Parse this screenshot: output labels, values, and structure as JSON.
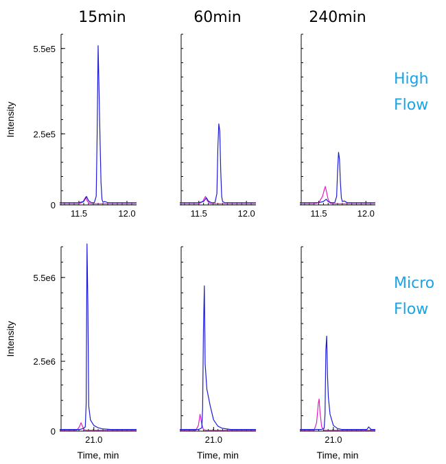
{
  "column_titles": [
    "15min",
    "60min",
    "240min"
  ],
  "row_labels": [
    {
      "line1": "High",
      "line2": "Flow",
      "color": "#1aa3e6"
    },
    {
      "line1": "Micro",
      "line2": "Flow",
      "color": "#1aa3e6"
    }
  ],
  "colors": {
    "series_a": "#1a1ad6",
    "series_b": "#e61ac8"
  },
  "chart_data": [
    {
      "type": "line",
      "row": 0,
      "col": 0,
      "xlabel": "",
      "ylabel": "Intensity",
      "xlim": [
        11.3,
        12.1
      ],
      "ylim": [
        0,
        600000
      ],
      "xticks": [
        {
          "value": 11.5,
          "label": "11.5"
        },
        {
          "value": 12.0,
          "label": "12.0"
        }
      ],
      "yticks": [
        {
          "value": 0,
          "label": "0"
        },
        {
          "value": 250000,
          "label": "2.5e5"
        },
        {
          "value": 550000,
          "label": "5.5e5"
        }
      ],
      "series": [
        {
          "x": [
            11.3,
            11.5,
            11.55,
            11.58,
            11.6,
            11.63,
            11.66,
            11.68,
            11.69,
            11.7,
            11.71,
            11.72,
            11.73,
            11.74,
            11.75,
            11.77,
            11.8,
            12.1
          ],
          "y": [
            8000,
            8000,
            12000,
            30000,
            15000,
            8000,
            8000,
            30000,
            250000,
            560000,
            400000,
            230000,
            80000,
            20000,
            10000,
            12000,
            8000,
            8000
          ]
        },
        {
          "x": [
            11.3,
            11.5,
            11.54,
            11.57,
            11.59,
            11.62,
            11.65,
            12.1
          ],
          "y": [
            4000,
            4000,
            10000,
            28000,
            12000,
            4000,
            4000,
            4000
          ]
        }
      ]
    },
    {
      "type": "line",
      "row": 0,
      "col": 1,
      "xlabel": "",
      "ylabel": "",
      "xlim": [
        11.3,
        12.1
      ],
      "ylim": [
        0,
        600000
      ],
      "xticks": [
        {
          "value": 11.5,
          "label": "11.5"
        },
        {
          "value": 12.0,
          "label": "12.0"
        }
      ],
      "yticks": [],
      "series": [
        {
          "x": [
            11.3,
            11.5,
            11.55,
            11.58,
            11.6,
            11.63,
            11.67,
            11.69,
            11.7,
            11.71,
            11.72,
            11.73,
            11.74,
            11.75,
            11.77,
            12.1
          ],
          "y": [
            8000,
            8000,
            12000,
            25000,
            14000,
            8000,
            8000,
            40000,
            200000,
            285000,
            260000,
            120000,
            30000,
            12000,
            8000,
            8000
          ]
        },
        {
          "x": [
            11.3,
            11.5,
            11.54,
            11.57,
            11.59,
            11.62,
            11.65,
            12.1
          ],
          "y": [
            4000,
            4000,
            12000,
            30000,
            14000,
            4000,
            4000,
            4000
          ]
        }
      ]
    },
    {
      "type": "line",
      "row": 0,
      "col": 2,
      "xlabel": "",
      "ylabel": "",
      "xlim": [
        11.3,
        12.1
      ],
      "ylim": [
        0,
        600000
      ],
      "xticks": [
        {
          "value": 11.5,
          "label": "11.5"
        },
        {
          "value": 12.0,
          "label": "12.0"
        }
      ],
      "yticks": [],
      "series": [
        {
          "x": [
            11.3,
            11.5,
            11.55,
            11.58,
            11.6,
            11.63,
            11.67,
            11.69,
            11.7,
            11.71,
            11.72,
            11.73,
            11.74,
            11.75,
            11.77,
            11.8,
            12.1
          ],
          "y": [
            8000,
            8000,
            12000,
            20000,
            12000,
            8000,
            8000,
            30000,
            120000,
            185000,
            160000,
            80000,
            25000,
            12000,
            14000,
            8000,
            8000
          ]
        },
        {
          "x": [
            11.3,
            11.45,
            11.5,
            11.54,
            11.56,
            11.57,
            11.58,
            11.6,
            11.62,
            11.65,
            12.1
          ],
          "y": [
            4000,
            4000,
            8000,
            30000,
            55000,
            65000,
            50000,
            20000,
            6000,
            4000,
            4000
          ]
        }
      ]
    },
    {
      "type": "line",
      "row": 1,
      "col": 0,
      "xlabel": "Time, min",
      "ylabel": "Intensity",
      "xlim": [
        20.6,
        21.5
      ],
      "ylim": [
        0,
        6600000
      ],
      "xticks": [
        {
          "value": 21.0,
          "label": "21.0"
        }
      ],
      "yticks": [
        {
          "value": 0,
          "label": "0"
        },
        {
          "value": 2500000,
          "label": "2.5e6"
        },
        {
          "value": 5500000,
          "label": "5.5e6"
        }
      ],
      "series": [
        {
          "x": [
            20.6,
            20.84,
            20.86,
            20.88,
            20.9,
            20.91,
            20.92,
            20.93,
            20.94,
            20.96,
            21.0,
            21.05,
            21.1,
            21.2,
            21.5
          ],
          "y": [
            60000,
            60000,
            80000,
            100000,
            150000,
            1000000,
            6700000,
            4500000,
            900000,
            400000,
            200000,
            120000,
            80000,
            60000,
            60000
          ]
        },
        {
          "x": [
            20.6,
            20.8,
            20.83,
            20.85,
            20.87,
            20.89,
            20.92,
            21.5
          ],
          "y": [
            30000,
            30000,
            150000,
            300000,
            150000,
            40000,
            30000,
            30000
          ]
        }
      ]
    },
    {
      "type": "line",
      "row": 1,
      "col": 1,
      "xlabel": "Time, min",
      "ylabel": "",
      "xlim": [
        20.6,
        21.5
      ],
      "ylim": [
        0,
        6600000
      ],
      "xticks": [
        {
          "value": 21.0,
          "label": "21.0"
        }
      ],
      "yticks": [],
      "series": [
        {
          "x": [
            20.6,
            20.82,
            20.84,
            20.86,
            20.87,
            20.88,
            20.89,
            20.9,
            20.92,
            20.96,
            21.0,
            21.05,
            21.1,
            21.2,
            21.5
          ],
          "y": [
            60000,
            60000,
            80000,
            120000,
            800000,
            3600000,
            5200000,
            2400000,
            1500000,
            900000,
            400000,
            180000,
            100000,
            60000,
            60000
          ]
        },
        {
          "x": [
            20.6,
            20.79,
            20.82,
            20.84,
            20.86,
            20.88,
            20.91,
            21.5
          ],
          "y": [
            30000,
            30000,
            200000,
            600000,
            250000,
            50000,
            30000,
            30000
          ]
        }
      ]
    },
    {
      "type": "line",
      "row": 1,
      "col": 2,
      "xlabel": "Time, min",
      "ylabel": "",
      "xlim": [
        20.6,
        21.5
      ],
      "ylim": [
        0,
        6600000
      ],
      "xticks": [
        {
          "value": 21.0,
          "label": "21.0"
        }
      ],
      "yticks": [],
      "series": [
        {
          "x": [
            20.6,
            20.86,
            20.89,
            20.9,
            20.91,
            20.92,
            20.93,
            20.94,
            20.96,
            21.0,
            21.05,
            21.1,
            21.2,
            21.4,
            21.42,
            21.45,
            21.5
          ],
          "y": [
            60000,
            60000,
            100000,
            600000,
            2900000,
            3400000,
            2000000,
            1200000,
            600000,
            200000,
            90000,
            60000,
            60000,
            60000,
            150000,
            60000,
            60000
          ]
        },
        {
          "x": [
            20.6,
            20.77,
            20.8,
            20.82,
            20.83,
            20.84,
            20.86,
            20.89,
            21.5
          ],
          "y": [
            30000,
            30000,
            300000,
            1000000,
            1150000,
            700000,
            150000,
            30000,
            30000
          ]
        }
      ]
    }
  ]
}
